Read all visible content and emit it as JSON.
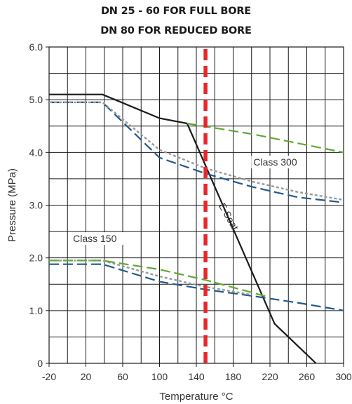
{
  "titles": [
    "DN 25 - 60 FOR FULL BORE",
    "DN 80 FOR REDUCED BORE"
  ],
  "chart_data": {
    "type": "line",
    "title": "DN 25 - 60 FOR FULL BORE / DN 80 FOR REDUCED BORE",
    "xlabel": "Temperature °C",
    "ylabel": "Pressure (MPa)",
    "xlim": [
      -20,
      300
    ],
    "ylim": [
      0,
      6.0
    ],
    "x_major_ticks": [
      -20,
      20,
      60,
      100,
      140,
      180,
      220,
      260,
      300
    ],
    "x_major_tick_labels": [
      "-20",
      "20",
      "60",
      "100",
      "140",
      "180",
      "220",
      "260",
      "300"
    ],
    "y_major_ticks": [
      0,
      1.0,
      2.0,
      3.0,
      4.0,
      5.0,
      6.0
    ],
    "y_major_tick_labels": [
      "0",
      "1.0",
      "2.0",
      "3.0",
      "4.0",
      "5.0",
      "6.0"
    ],
    "grid": true,
    "series": [
      {
        "name": "E Seat",
        "color": "#1a1a1a",
        "style": "solid",
        "x": [
          -20,
          38,
          100,
          130,
          225,
          270
        ],
        "y": [
          5.1,
          5.1,
          4.65,
          4.55,
          0.75,
          0
        ]
      },
      {
        "color": "#1f5a8c",
        "style": "dashed",
        "x": [
          -20,
          38,
          100,
          150,
          200,
          250,
          300
        ],
        "y": [
          4.95,
          4.95,
          3.9,
          3.6,
          3.35,
          3.15,
          3.05
        ]
      },
      {
        "color": "#999999",
        "style": "dotted",
        "x": [
          -20,
          38,
          100,
          150,
          200,
          250,
          300
        ],
        "y": [
          4.95,
          4.95,
          4.05,
          3.7,
          3.45,
          3.25,
          3.1
        ]
      },
      {
        "color": "#5fa832",
        "style": "dashed",
        "x": [
          130,
          200,
          300
        ],
        "y": [
          4.55,
          4.35,
          4.0
        ]
      },
      {
        "color": "#1f5a8c",
        "style": "dashed",
        "x": [
          -20,
          38,
          100,
          150,
          200,
          250,
          300
        ],
        "y": [
          1.88,
          1.88,
          1.55,
          1.4,
          1.28,
          1.15,
          1.0
        ]
      },
      {
        "color": "#999999",
        "style": "dotted",
        "x": [
          -20,
          38,
          100,
          150,
          200
        ],
        "y": [
          1.95,
          1.95,
          1.65,
          1.45,
          1.3
        ]
      },
      {
        "color": "#5fa832",
        "style": "dashed",
        "x": [
          -20,
          38,
          100,
          150,
          220
        ],
        "y": [
          1.95,
          1.95,
          1.78,
          1.58,
          1.25
        ]
      },
      {
        "color": "#e8272a",
        "style": "dashed-thick",
        "x": [
          150,
          150
        ],
        "y": [
          0,
          6.0
        ]
      }
    ],
    "annotations": [
      {
        "text": "Class 300",
        "x": 202,
        "y": 3.75
      },
      {
        "text": "Class 150",
        "x": 6,
        "y": 2.3
      },
      {
        "text": "E Seat",
        "x": 172,
        "y": 2.75,
        "rotation": 60
      }
    ]
  }
}
